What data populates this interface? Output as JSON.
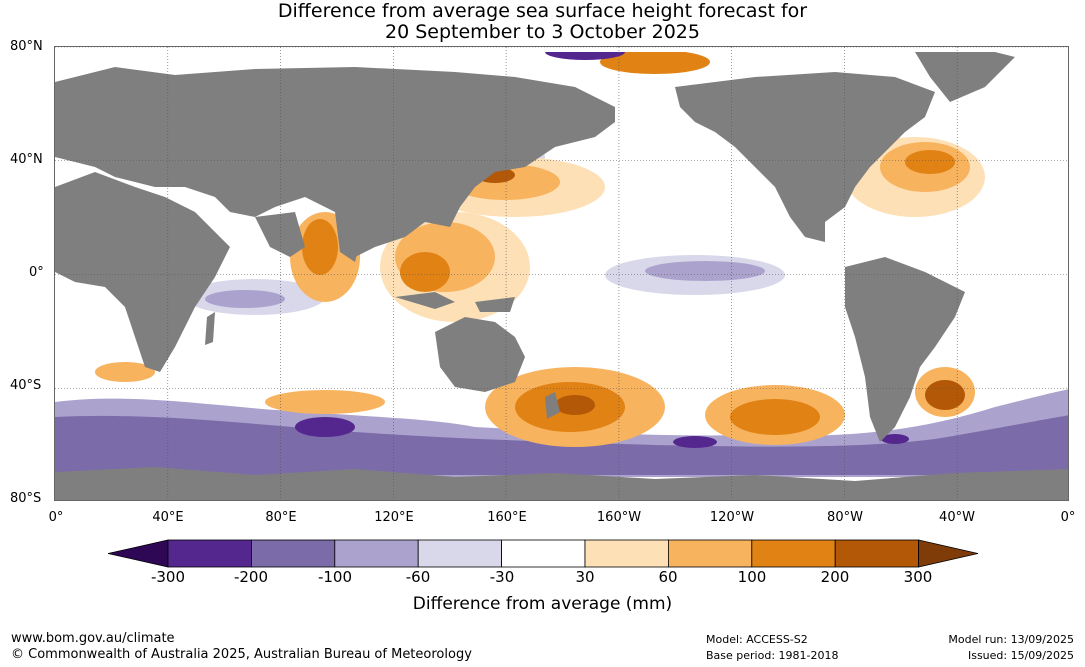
{
  "title": {
    "line1": "Difference from average sea surface height forecast for",
    "line2": "20 September to 3 October 2025"
  },
  "map": {
    "lat_labels": [
      "80°N",
      "40°N",
      "0°",
      "40°S",
      "80°S"
    ],
    "lon_labels": [
      "0°",
      "40°E",
      "80°E",
      "120°E",
      "160°E",
      "160°W",
      "120°W",
      "80°W",
      "40°W",
      "0°"
    ],
    "land_color": "#7f7f7f",
    "ocean_color": "#ffffff"
  },
  "legend": {
    "label": "Difference from average (mm)",
    "ticks": [
      "-300",
      "-200",
      "-100",
      "-60",
      "-30",
      "30",
      "60",
      "100",
      "200",
      "300"
    ],
    "colors": [
      "#2e0854",
      "#54278f",
      "#7c6ba9",
      "#aba3cd",
      "#d8d8ea",
      "#ffffff",
      "#fde0b6",
      "#f8b35f",
      "#e08214",
      "#b35806",
      "#7f3b08"
    ]
  },
  "footer": {
    "site": "www.bom.gov.au/climate",
    "copyright": "© Commonwealth of Australia 2025, Australian Bureau of Meteorology",
    "model": "Model: ACCESS-S2",
    "base_period": "Base period: 1981-2018",
    "model_run": "Model run: 13/09/2025",
    "issued": "Issued: 15/09/2025"
  }
}
